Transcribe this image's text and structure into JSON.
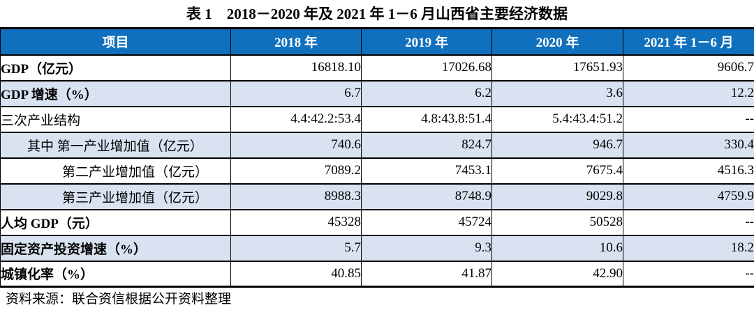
{
  "title": "表 1　2018－2020 年及 2021 年 1－6 月山西省主要经济数据",
  "source_note": "资料来源：联合资信根据公开资料整理",
  "colors": {
    "header_bg": "#1170BD",
    "header_text": "#FFFFFF",
    "stripe_bg": "#D9E2F1",
    "border": "#000000"
  },
  "table": {
    "columns": [
      "项目",
      "2018 年",
      "2019 年",
      "2020 年",
      "2021 年 1－6 月"
    ],
    "rows": [
      {
        "label": "GDP（亿元）",
        "bold": true,
        "indent": 0,
        "shaded": false,
        "values": [
          "16818.10",
          "17026.68",
          "17651.93",
          "9606.7"
        ]
      },
      {
        "label": "GDP 增速（%）",
        "bold": true,
        "indent": 0,
        "shaded": true,
        "values": [
          "6.7",
          "6.2",
          "3.6",
          "12.2"
        ]
      },
      {
        "label": "三次产业结构",
        "bold": false,
        "indent": 0,
        "shaded": false,
        "values": [
          "4.4:42.2:53.4",
          "4.8:43.8:51.4",
          "5.4:43.4:51.2",
          "--"
        ]
      },
      {
        "label": "其中 第一产业增加值（亿元）",
        "bold": false,
        "indent": 1,
        "shaded": true,
        "values": [
          "740.6",
          "824.7",
          "946.7",
          "330.4"
        ]
      },
      {
        "label": "第二产业增加值（亿元）",
        "bold": false,
        "indent": 2,
        "shaded": false,
        "values": [
          "7089.2",
          "7453.1",
          "7675.4",
          "4516.3"
        ]
      },
      {
        "label": "第三产业增加值（亿元）",
        "bold": false,
        "indent": 2,
        "shaded": true,
        "values": [
          "8988.3",
          "8748.9",
          "9029.8",
          "4759.9"
        ]
      },
      {
        "label": "人均 GDP（元）",
        "bold": true,
        "indent": 0,
        "shaded": false,
        "values": [
          "45328",
          "45724",
          "50528",
          "--"
        ]
      },
      {
        "label": "固定资产投资增速（%）",
        "bold": true,
        "indent": 0,
        "shaded": true,
        "values": [
          "5.7",
          "9.3",
          "10.6",
          "18.2"
        ]
      },
      {
        "label": "城镇化率（%）",
        "bold": true,
        "indent": 0,
        "shaded": false,
        "values": [
          "40.85",
          "41.87",
          "42.90",
          "--"
        ]
      }
    ]
  }
}
